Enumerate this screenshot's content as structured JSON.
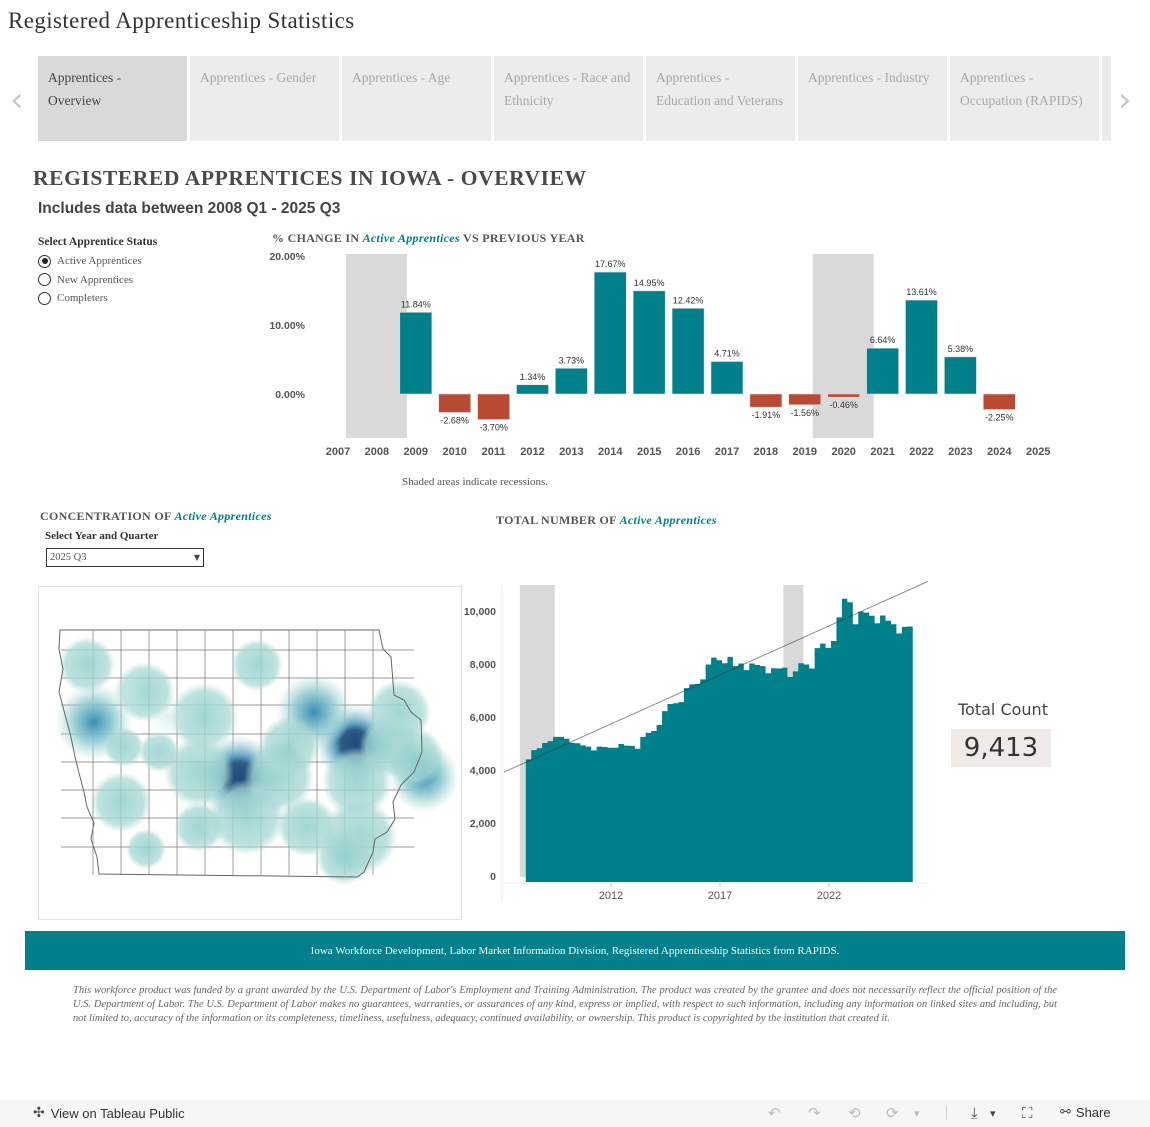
{
  "app_title": "Registered Apprenticeship Statistics",
  "tabs": [
    {
      "label": "Apprentices - Overview",
      "active": true
    },
    {
      "label": "Apprentices - Gender",
      "active": false
    },
    {
      "label": "Apprentices - Age",
      "active": false
    },
    {
      "label": "Apprentices - Race and Ethnicity",
      "active": false
    },
    {
      "label": "Apprentices - Education and Veterans",
      "active": false
    },
    {
      "label": "Apprentices - Industry",
      "active": false
    },
    {
      "label": "Apprentices - Occupation (RAPIDS)",
      "active": false
    }
  ],
  "nav": {
    "prev_icon": "chevron-left-icon",
    "next_icon": "chevron-right-icon",
    "prev_glyph": "‹",
    "next_glyph": "›"
  },
  "heading": "REGISTERED APPRENTICES IN IOWA - OVERVIEW",
  "subheading": "Includes data between 2008 Q1 - 2025 Q3",
  "status_filter": {
    "label": "Select Apprentice Status",
    "options": [
      {
        "label": "Active Apprentices",
        "selected": true
      },
      {
        "label": "New Apprentices",
        "selected": false
      },
      {
        "label": "Completers",
        "selected": false
      }
    ]
  },
  "selected_measure": "Active Apprentices",
  "pct_chart_title": {
    "prefix": "% CHANGE IN",
    "measure": "Active Apprentices",
    "suffix": "VS PREVIOUS YEAR"
  },
  "recession_note": "Shaded areas indicate recessions.",
  "concentration": {
    "title_prefix": "CONCENTRATION OF",
    "measure": "Active Apprentices",
    "select_label": "Select Year and Quarter",
    "selected_value": "2025 Q3",
    "caret": "▼"
  },
  "total_title": {
    "prefix": "TOTAL NUMBER OF",
    "measure": "Active Apprentices"
  },
  "total_count": {
    "label": "Total Count",
    "value": "9,413"
  },
  "source": "Iowa Workforce Development, Labor Market Information Division, Registered Apprenticeship Statistics from RAPIDS.",
  "disclaimer": "This workforce product was funded by a grant awarded by the U.S. Department of Labor's Employment and Training Administration. The product was created by the grantee and does not necessarily reflect the official position of the U.S. Department of Labor. The U.S. Department of Labor makes no guarantees, warranties, or assurances of any kind, express or implied, with respect to such information, including any information on linked sites and including, but not limited to, accuracy of the information or its completeness, timeliness, usefulness, adequacy, continued availability, or ownership. This product is copyrighted by the institution that created it.",
  "toolbar": {
    "view_label": "View on Tableau Public",
    "share_label": "Share",
    "undo_glyph": "↶",
    "redo_glyph": "↷",
    "revert_glyph": "⟲",
    "refresh_glyph": "⟳",
    "dropdown_glyph": "▾",
    "download_glyph": "⤓",
    "fullscreen_glyph": "⛶",
    "tableau_glyph": "✣",
    "share_glyph": "⚯"
  },
  "colors": {
    "teal": "#00808b",
    "negative": "#b94a34",
    "recession": "#d9d9d9",
    "map_dark": "#2e5a87",
    "map_light": "#a8d8d4"
  },
  "chart_data": [
    {
      "type": "bar",
      "title": "% CHANGE IN Active Apprentices VS PREVIOUS YEAR",
      "categories": [
        "2007",
        "2008",
        "2009",
        "2010",
        "2011",
        "2012",
        "2013",
        "2014",
        "2015",
        "2016",
        "2017",
        "2018",
        "2019",
        "2020",
        "2021",
        "2022",
        "2023",
        "2024",
        "2025"
      ],
      "values": [
        null,
        null,
        11.84,
        -2.68,
        -3.7,
        1.34,
        3.73,
        17.67,
        14.95,
        12.42,
        4.71,
        -1.91,
        -1.56,
        -0.46,
        6.64,
        13.61,
        5.38,
        -2.25,
        null
      ],
      "labels": {
        "2009": "11.84%",
        "2010": "-2.68%",
        "2011": "-3.70%",
        "2012": "1.34%",
        "2013": "3.73%",
        "2014": "17.67%",
        "2015": "14.95%",
        "2016": "12.42%",
        "2017": "4.71%",
        "2018": "-1.91%",
        "2019": "-1.56%",
        "2020": "-0.46%",
        "2021": "6.64%",
        "2022": "13.61%",
        "2023": "5.38%",
        "2024": "-2.25%"
      },
      "ylabel": "",
      "xlabel": "",
      "yticks": [
        "20.00%",
        "10.00%",
        "0.00%"
      ],
      "ytick_values": [
        20,
        10,
        0
      ],
      "ylim": [
        -6.5,
        20.5
      ],
      "recessions": [
        "2008",
        "2020"
      ],
      "grid": false,
      "positive_color": "#00808b",
      "negative_color": "#b94a34"
    },
    {
      "type": "area",
      "title": "TOTAL NUMBER OF Active Apprentices",
      "x_start": "2008 Q1",
      "x_end": "2025 Q3",
      "values": [
        4400,
        4750,
        4820,
        5020,
        5090,
        5250,
        5250,
        5180,
        5030,
        5010,
        4930,
        4880,
        4740,
        4880,
        4870,
        4840,
        4840,
        4980,
        4920,
        4910,
        4800,
        5250,
        5400,
        5470,
        5700,
        6220,
        6490,
        6520,
        6560,
        7090,
        7230,
        7250,
        7420,
        7980,
        8240,
        8140,
        8030,
        8270,
        7920,
        8020,
        7770,
        8020,
        7960,
        7920,
        7650,
        7840,
        7830,
        7860,
        7510,
        7720,
        8030,
        7980,
        7830,
        8600,
        8770,
        8610,
        8870,
        9760,
        10460,
        10330,
        9500,
        9980,
        9940,
        9820,
        9540,
        9830,
        9630,
        9500,
        9150,
        9400,
        9413
      ],
      "yticks": [
        "0",
        "2,000",
        "4,000",
        "6,000",
        "8,000",
        "10,000"
      ],
      "ytick_values": [
        0,
        2000,
        4000,
        6000,
        8000,
        10000
      ],
      "xticks": [
        "2012",
        "2017",
        "2022"
      ],
      "xtick_years": [
        2012,
        2017,
        2022
      ],
      "ylim": [
        0,
        10800
      ],
      "trend_line": {
        "start": 3850,
        "slope_per_year": 370,
        "start_year": 2006.9
      },
      "recessions": [
        [
          "2008 Q1",
          "2009 Q2"
        ],
        [
          "2020 Q1",
          "2020 Q3"
        ]
      ]
    }
  ]
}
